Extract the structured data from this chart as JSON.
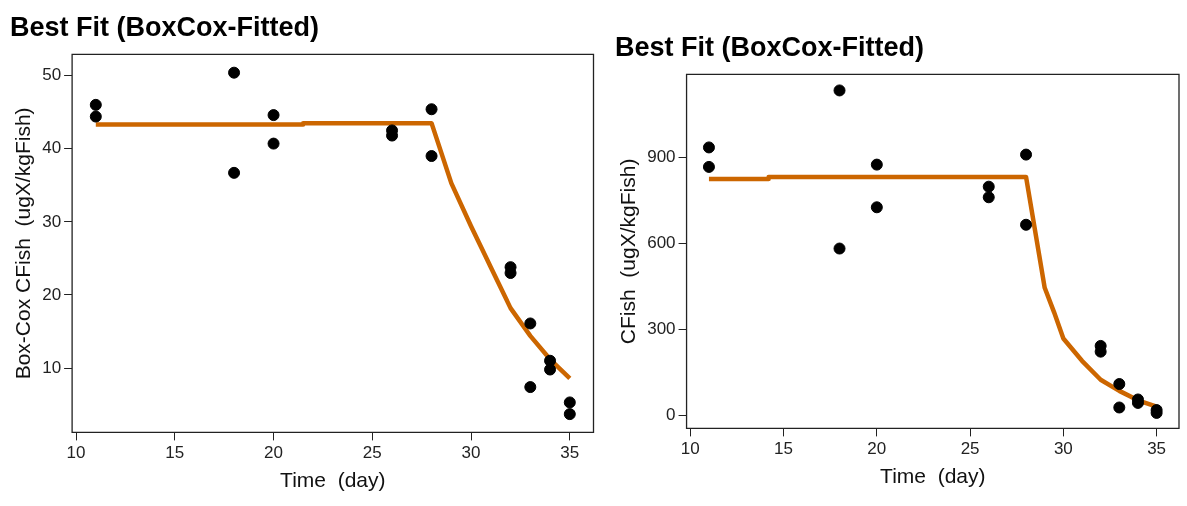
{
  "chart_data": [
    {
      "type": "scatter",
      "title": "Best Fit (BoxCox-Fitted)",
      "xlabel": "Time  (day)",
      "ylabel": "Box-Cox CFish  (ugX/kgFish)",
      "xlim": [
        9.8,
        36.2
      ],
      "ylim": [
        1.2,
        52.9
      ],
      "xticks": [
        10,
        15,
        20,
        25,
        30,
        35
      ],
      "yticks": [
        10,
        20,
        30,
        40,
        50
      ],
      "grid": false,
      "legend": false,
      "series": [
        {
          "marker": "circle",
          "color": "#000000",
          "x": [
            11,
            11,
            18,
            18,
            20,
            20,
            26,
            26,
            28,
            28,
            32,
            32,
            33,
            33,
            34,
            34,
            35,
            35
          ],
          "values": [
            46.0,
            44.4,
            50.4,
            36.7,
            44.6,
            40.7,
            42.5,
            41.8,
            45.4,
            39.0,
            23.8,
            23.0,
            16.1,
            7.4,
            11.0,
            9.8,
            5.3,
            3.7
          ]
        },
        {
          "type": "line",
          "marker": "none",
          "color": "#cc6600",
          "x": [
            11,
            21.5,
            21.5,
            28,
            29,
            30,
            31,
            32,
            33,
            34,
            35
          ],
          "values": [
            43.3,
            43.3,
            43.5,
            43.5,
            35.3,
            29.4,
            23.8,
            18.2,
            14.4,
            11.2,
            8.6
          ]
        }
      ]
    },
    {
      "type": "scatter",
      "title": "Best Fit (BoxCox-Fitted)",
      "xlabel": "Time  (day)",
      "ylabel": "CFish  (ugX/kgFish)",
      "xlim": [
        9.8,
        36.2
      ],
      "ylim": [
        -46,
        1190
      ],
      "xticks": [
        10,
        15,
        20,
        25,
        30,
        35
      ],
      "yticks": [
        0,
        300,
        600,
        900
      ],
      "grid": false,
      "legend": false,
      "series": [
        {
          "marker": "circle",
          "color": "#000000",
          "x": [
            11,
            11,
            18,
            18,
            20,
            20,
            26,
            26,
            28,
            28,
            32,
            32,
            33,
            33,
            34,
            34,
            35,
            35
          ],
          "values": [
            935,
            867,
            1134,
            582,
            875,
            726,
            798,
            761,
            910,
            665,
            242,
            222,
            109,
            27,
            55,
            43,
            18,
            8
          ]
        },
        {
          "type": "line",
          "marker": "none",
          "color": "#cc6600",
          "x": [
            11,
            14.2,
            14.2,
            28,
            29,
            29.5,
            30,
            31,
            32,
            33,
            34,
            35
          ],
          "values": [
            825,
            825,
            832,
            832,
            445,
            360,
            268,
            190,
            124,
            85,
            52,
            30
          ]
        }
      ]
    }
  ]
}
